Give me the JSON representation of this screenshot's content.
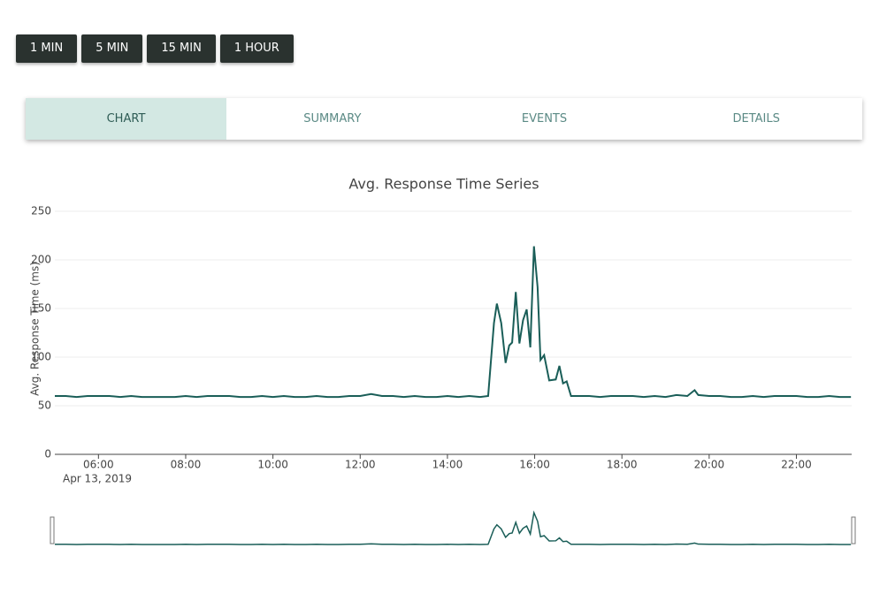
{
  "buttons": [
    "1 MIN",
    "5 MIN",
    "15 MIN",
    "1 HOUR"
  ],
  "tabs": [
    "CHART",
    "SUMMARY",
    "EVENTS",
    "DETAILS"
  ],
  "chart_data": {
    "type": "line",
    "title": "Avg. Response Time Series",
    "y_label": "Avg. Response Time (ms)",
    "x_date_label": "Apr 13, 2019",
    "x": [
      "05:00",
      "05:15",
      "05:30",
      "05:45",
      "06:00",
      "06:15",
      "06:30",
      "06:45",
      "07:00",
      "07:15",
      "07:30",
      "07:45",
      "08:00",
      "08:15",
      "08:30",
      "08:45",
      "09:00",
      "09:15",
      "09:30",
      "09:45",
      "10:00",
      "10:15",
      "10:30",
      "10:45",
      "11:00",
      "11:15",
      "11:30",
      "11:45",
      "12:00",
      "12:15",
      "12:30",
      "12:45",
      "13:00",
      "13:15",
      "13:30",
      "13:45",
      "14:00",
      "14:15",
      "14:30",
      "14:45",
      "14:56",
      "15:04",
      "15:08",
      "15:14",
      "15:20",
      "15:25",
      "15:29",
      "15:34",
      "15:39",
      "15:44",
      "15:49",
      "15:54",
      "15:59",
      "16:04",
      "16:08",
      "16:13",
      "16:20",
      "16:29",
      "16:34",
      "16:39",
      "16:44",
      "16:50",
      "17:00",
      "17:15",
      "17:30",
      "17:45",
      "18:00",
      "18:15",
      "18:30",
      "18:45",
      "19:00",
      "19:15",
      "19:30",
      "19:40",
      "19:45",
      "20:00",
      "20:15",
      "20:30",
      "20:45",
      "21:00",
      "21:15",
      "21:30",
      "21:45",
      "22:00",
      "22:15",
      "22:30",
      "22:45",
      "23:00",
      "23:15"
    ],
    "series": [
      {
        "color": "#1a5e58",
        "values": [
          60,
          60,
          59,
          60,
          60,
          60,
          59,
          60,
          59,
          59,
          59,
          59,
          60,
          59,
          60,
          60,
          60,
          59,
          59,
          60,
          59,
          60,
          59,
          59,
          60,
          59,
          59,
          60,
          60,
          62,
          60,
          60,
          59,
          60,
          59,
          59,
          60,
          59,
          60,
          59,
          60,
          135,
          155,
          135,
          94,
          112,
          115,
          167,
          114,
          138,
          149,
          110,
          214,
          172,
          97,
          102,
          76,
          77,
          91,
          73,
          75,
          60,
          60,
          60,
          59,
          60,
          60,
          60,
          59,
          60,
          59,
          61,
          60,
          66,
          61,
          60,
          60,
          59,
          59,
          60,
          59,
          60,
          60,
          60,
          59,
          59,
          60,
          59,
          59
        ]
      }
    ],
    "xlim": [
      "05:00",
      "23:16"
    ],
    "xticks": [
      "06:00",
      "08:00",
      "10:00",
      "12:00",
      "14:00",
      "16:00",
      "18:00",
      "20:00",
      "22:00"
    ],
    "ylim": [
      0,
      250
    ],
    "yticks": [
      0,
      50,
      100,
      150,
      200,
      250
    ],
    "grid": true,
    "range_slider": true
  }
}
